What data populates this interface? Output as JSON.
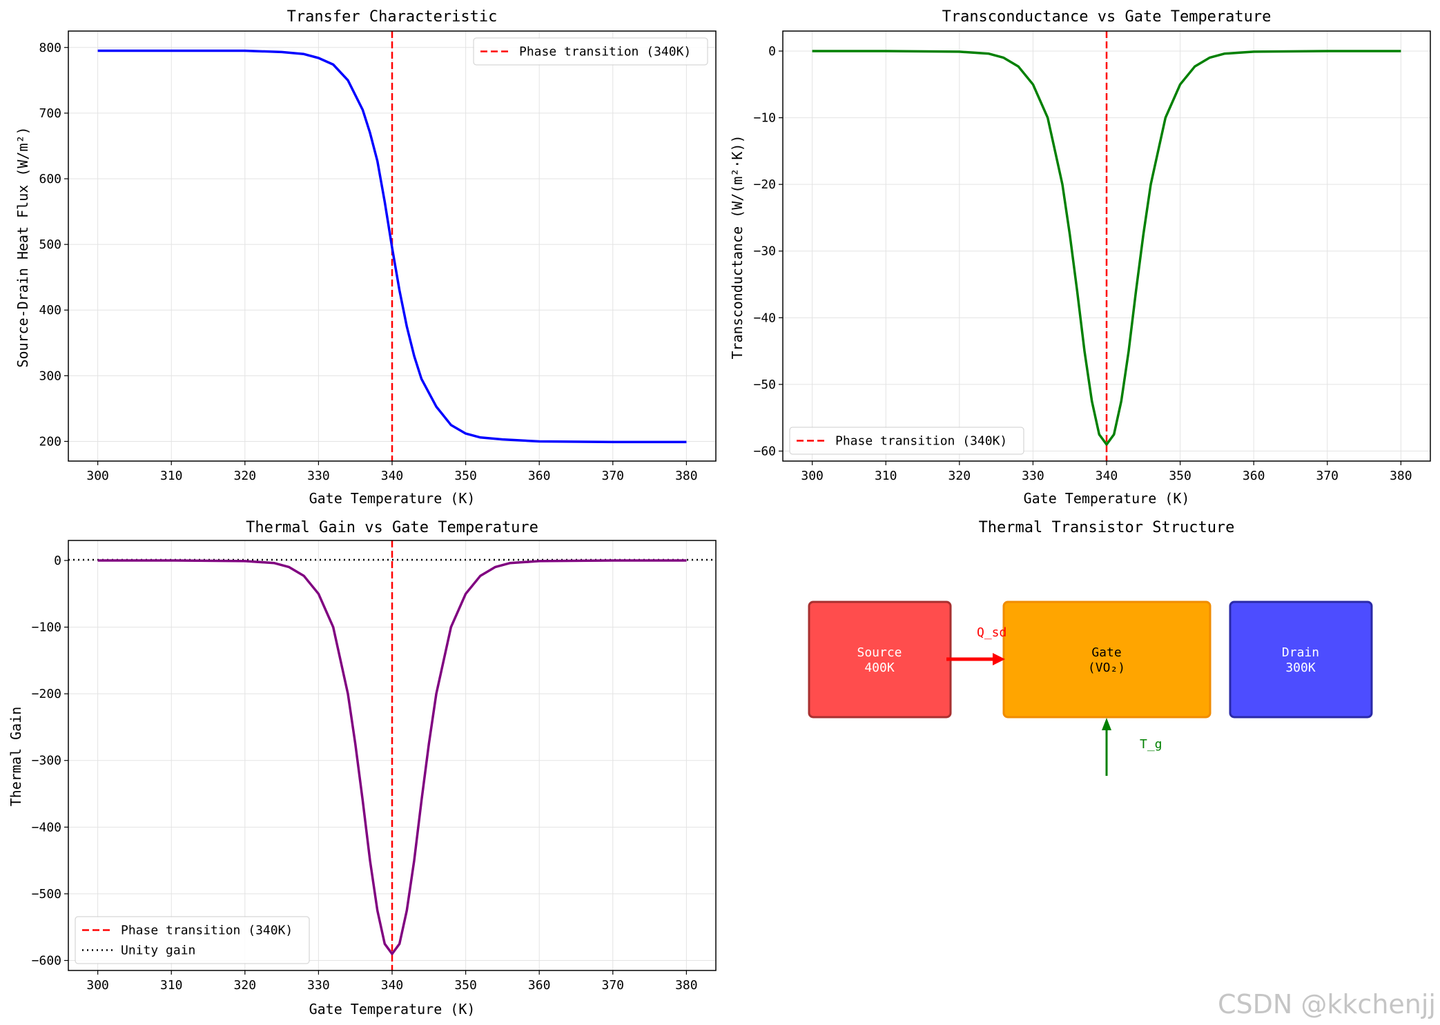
{
  "chart_data": [
    {
      "type": "line",
      "title": "Transfer Characteristic",
      "xlabel": "Gate Temperature (K)",
      "ylabel": "Source-Drain Heat Flux (W/m²)",
      "xlim": [
        296,
        384
      ],
      "ylim": [
        170,
        825
      ],
      "xticks": [
        300,
        310,
        320,
        330,
        340,
        350,
        360,
        370,
        380
      ],
      "yticks": [
        200,
        300,
        400,
        500,
        600,
        700,
        800
      ],
      "grid": true,
      "legend_position": "top-right",
      "series": [
        {
          "name": "",
          "color": "#0000ff",
          "kind": "line",
          "x": [
            300,
            310,
            320,
            325,
            328,
            330,
            332,
            334,
            336,
            337,
            338,
            339,
            340,
            341,
            342,
            343,
            344,
            346,
            348,
            350,
            352,
            355,
            360,
            370,
            380
          ],
          "y": [
            795,
            795,
            795,
            793,
            790,
            784,
            774,
            750,
            705,
            670,
            627,
            565,
            495,
            430,
            375,
            330,
            295,
            253,
            225,
            212,
            206,
            203,
            200,
            199,
            199
          ]
        }
      ],
      "reference_lines": [
        {
          "name": "Phase transition (340K)",
          "orientation": "vertical",
          "value": 340,
          "color": "#ff0000",
          "style": "dashed"
        }
      ]
    },
    {
      "type": "line",
      "title": "Transconductance vs Gate Temperature",
      "xlabel": "Gate Temperature (K)",
      "ylabel": "Transconductance (W/(m²·K))",
      "xlim": [
        296,
        384
      ],
      "ylim": [
        -61.5,
        3
      ],
      "xticks": [
        300,
        310,
        320,
        330,
        340,
        350,
        360,
        370,
        380
      ],
      "yticks": [
        0,
        -10,
        -20,
        -30,
        -40,
        -50,
        -60
      ],
      "grid": true,
      "legend_position": "bottom-left",
      "series": [
        {
          "name": "",
          "color": "#008000",
          "kind": "line",
          "x": [
            300,
            310,
            320,
            324,
            326,
            328,
            330,
            332,
            334,
            335,
            336,
            337,
            338,
            339,
            340,
            341,
            342,
            343,
            344,
            345,
            346,
            348,
            350,
            352,
            354,
            356,
            360,
            370,
            380
          ],
          "y": [
            0,
            0,
            -0.1,
            -0.4,
            -1.0,
            -2.3,
            -5.0,
            -10.0,
            -20.0,
            -27.5,
            -36.0,
            -45.0,
            -52.5,
            -57.5,
            -59.0,
            -57.5,
            -52.5,
            -45.0,
            -36.0,
            -27.5,
            -20.0,
            -10.0,
            -5.0,
            -2.3,
            -1.0,
            -0.4,
            -0.1,
            0,
            0
          ]
        }
      ],
      "reference_lines": [
        {
          "name": "Phase transition (340K)",
          "orientation": "vertical",
          "value": 340,
          "color": "#ff0000",
          "style": "dashed"
        }
      ]
    },
    {
      "type": "line",
      "title": "Thermal Gain vs Gate Temperature",
      "xlabel": "Gate Temperature (K)",
      "ylabel": "Thermal Gain",
      "xlim": [
        296,
        384
      ],
      "ylim": [
        -615,
        30
      ],
      "xticks": [
        300,
        310,
        320,
        330,
        340,
        350,
        360,
        370,
        380
      ],
      "yticks": [
        0,
        -100,
        -200,
        -300,
        -400,
        -500,
        -600
      ],
      "grid": true,
      "legend_position": "bottom-left",
      "series": [
        {
          "name": "",
          "color": "#800080",
          "kind": "line",
          "x": [
            300,
            310,
            320,
            324,
            326,
            328,
            330,
            332,
            334,
            335,
            336,
            337,
            338,
            339,
            340,
            341,
            342,
            343,
            344,
            345,
            346,
            348,
            350,
            352,
            354,
            356,
            360,
            370,
            380
          ],
          "y": [
            0,
            0,
            -1,
            -4,
            -10,
            -23,
            -50,
            -100,
            -200,
            -275,
            -360,
            -450,
            -525,
            -575,
            -590,
            -575,
            -525,
            -450,
            -360,
            -275,
            -200,
            -100,
            -50,
            -23,
            -10,
            -4,
            -1,
            0,
            0
          ]
        }
      ],
      "reference_lines": [
        {
          "name": "Phase transition (340K)",
          "orientation": "vertical",
          "value": 340,
          "color": "#ff0000",
          "style": "dashed"
        },
        {
          "name": "Unity gain",
          "orientation": "horizontal",
          "value": 1,
          "color": "#000000",
          "style": "dotted"
        }
      ]
    }
  ],
  "diagram": {
    "title": "Thermal Transistor Structure",
    "blocks": [
      {
        "line1": "Source",
        "line2": "400K",
        "color": "#ff4d4d"
      },
      {
        "line1": "Gate",
        "line2": "(VO₂)",
        "color": "#ffa500"
      },
      {
        "line1": "Drain",
        "line2": "300K",
        "color": "#4d4dff"
      }
    ],
    "arrows": [
      {
        "label": "Q_sd",
        "color": "#ff0000"
      },
      {
        "label": "T_g",
        "color": "#008000"
      }
    ]
  },
  "watermark": "CSDN @kkchenjj"
}
